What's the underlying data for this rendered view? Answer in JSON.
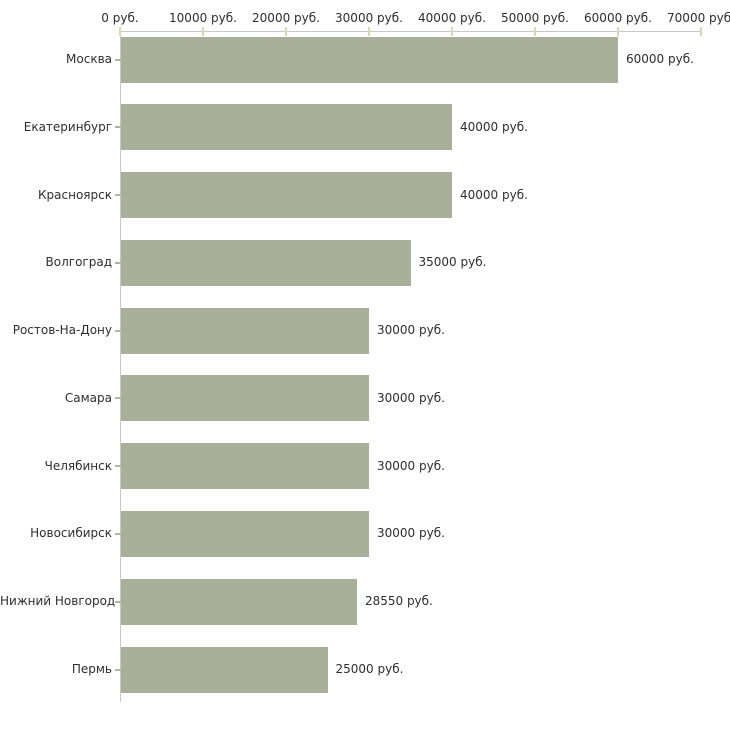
{
  "chart_data": {
    "type": "bar",
    "orientation": "horizontal",
    "title": "",
    "xlabel": "",
    "ylabel": "",
    "unit": "руб.",
    "xlim": [
      0,
      70000
    ],
    "grid": false,
    "legend": null,
    "categories": [
      "Москва",
      "Екатеринбург",
      "Красноярск",
      "Волгоград",
      "Ростов-На-Дону",
      "Самара",
      "Челябинск",
      "Новосибирск",
      "Нижний Новгород",
      "Пермь"
    ],
    "values": [
      60000,
      40000,
      40000,
      35000,
      30000,
      30000,
      30000,
      30000,
      28550,
      25000
    ],
    "value_labels": [
      "60000 руб.",
      "40000 руб.",
      "40000 руб.",
      "35000 руб.",
      "30000 руб.",
      "30000 руб.",
      "30000 руб.",
      "30000 руб.",
      "28550 руб.",
      "25000 руб."
    ],
    "x_tick_values": [
      0,
      10000,
      20000,
      30000,
      40000,
      50000,
      60000,
      70000
    ],
    "x_tick_labels": [
      "0 руб.",
      "10000 руб.",
      "20000 руб.",
      "30000 руб.",
      "40000 руб.",
      "50000 руб.",
      "60000 руб.",
      "70000 руб."
    ],
    "colors": {
      "bar": "#a9af99",
      "axis_line": "#c8c8c8",
      "x_tick": "#d9d9b0",
      "category_tick": "#b3b3a6",
      "text": "#2e2e2e",
      "background": "#ffffff"
    }
  }
}
